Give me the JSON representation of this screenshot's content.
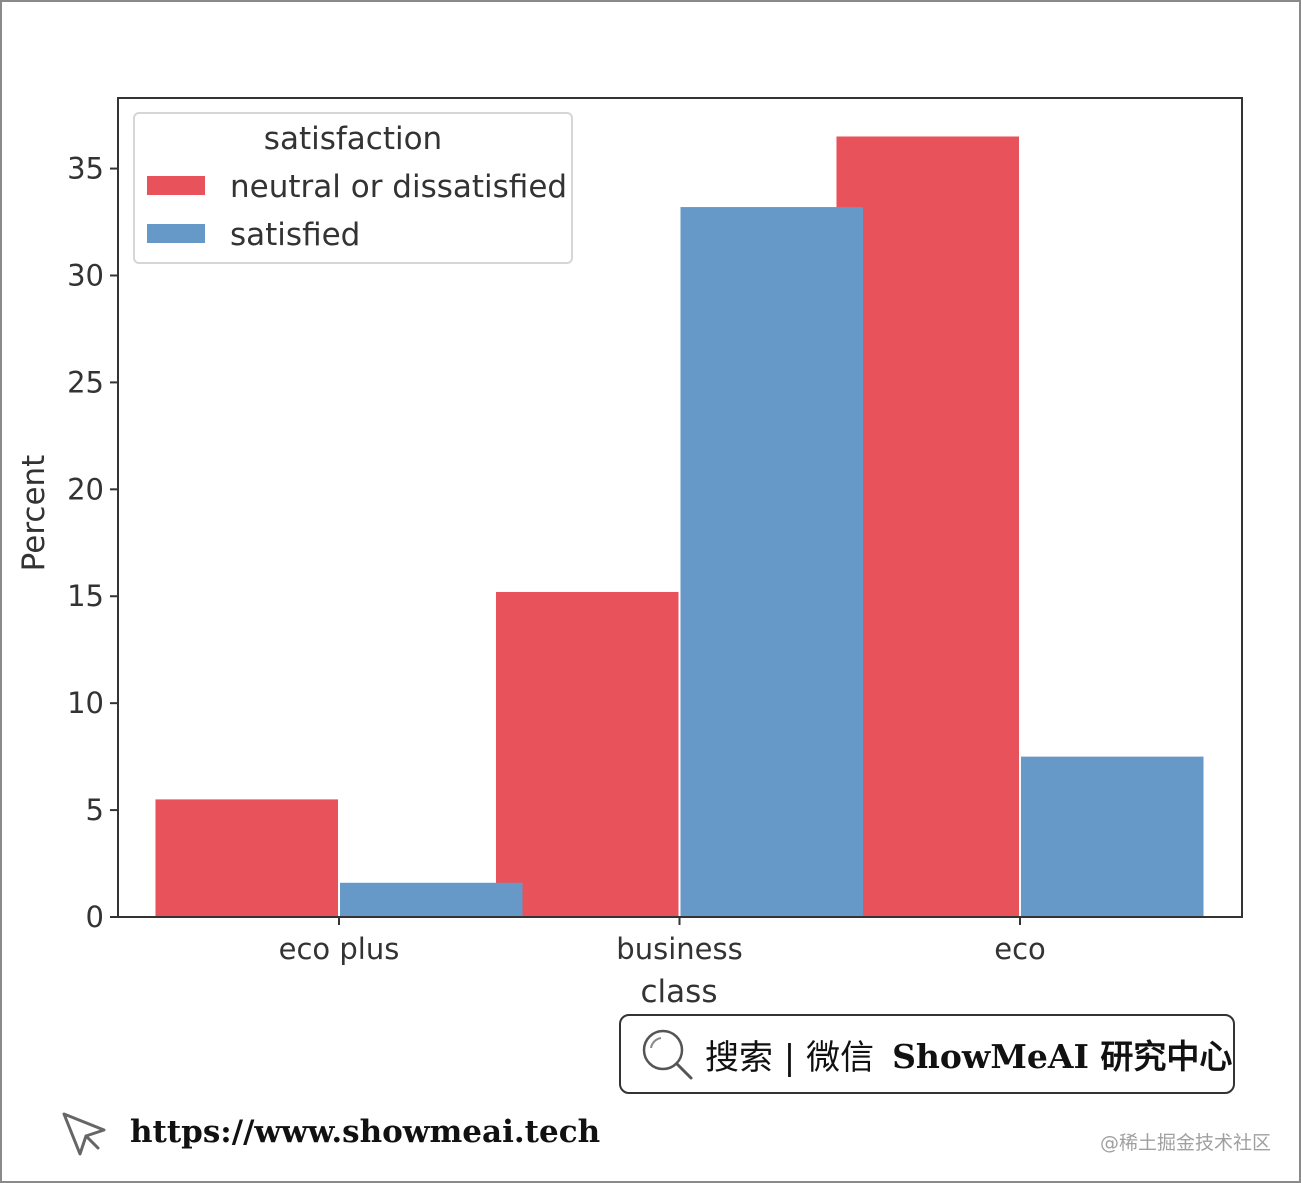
{
  "chart_data": {
    "type": "bar",
    "categories": [
      "eco plus",
      "business",
      "eco"
    ],
    "series": [
      {
        "name": "neutral or dissatisfied",
        "values": [
          5.5,
          15.2,
          36.5
        ],
        "color": "#e8525a"
      },
      {
        "name": "satisfied",
        "values": [
          1.6,
          33.2,
          7.5
        ],
        "color": "#6699c8"
      }
    ],
    "xlabel": "class",
    "ylabel": "Percent",
    "ylim": [
      0,
      38.3
    ],
    "yticks": [
      "0",
      "5",
      "10",
      "15",
      "20",
      "25",
      "30",
      "35"
    ],
    "legend_title": "satisfaction",
    "legend_position": "top-left",
    "grid": false
  },
  "footer": {
    "search_text": "搜索 | 微信",
    "brand": "ShowMeAI 研究中心",
    "url": "https://www.showmeai.tech",
    "watermark": "@稀土掘金技术社区",
    "search_icon": "search-icon",
    "cursor_icon": "cursor-icon"
  }
}
